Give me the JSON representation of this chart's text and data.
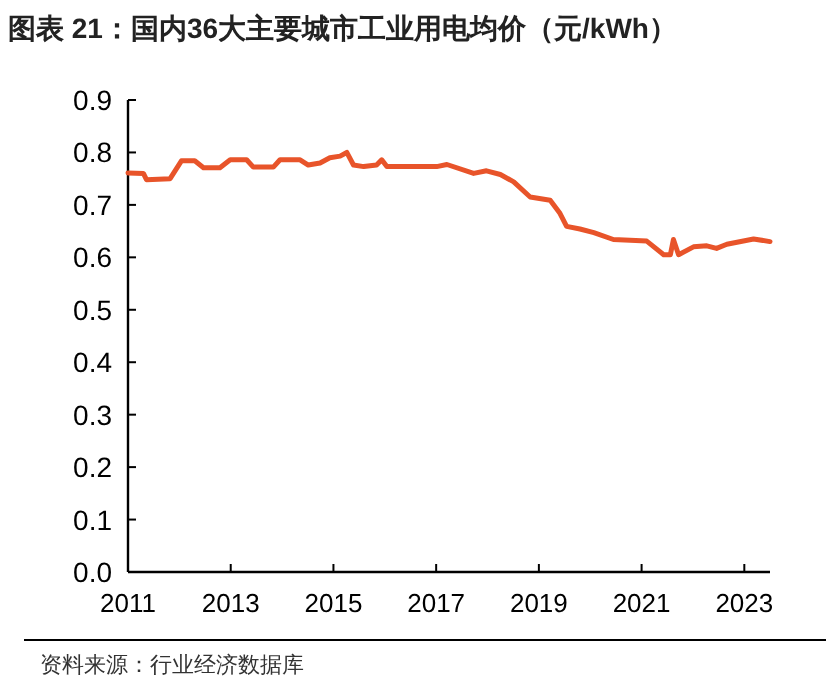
{
  "chart_data": {
    "type": "line",
    "title": "图表 21：国内36大主要城市工业用电均价（元/kWh）",
    "annotations": [
      "资料来源：行业经济数据库"
    ],
    "x": [
      2011.0,
      2011.3,
      2011.36,
      2011.82,
      2012.04,
      2012.3,
      2012.47,
      2012.79,
      2012.99,
      2013.31,
      2013.44,
      2013.83,
      2013.96,
      2014.35,
      2014.51,
      2014.74,
      2014.93,
      2015.13,
      2015.26,
      2015.39,
      2015.59,
      2015.84,
      2015.94,
      2016.04,
      2016.69,
      2017.01,
      2017.21,
      2017.73,
      2017.98,
      2018.25,
      2018.51,
      2018.83,
      2019.22,
      2019.41,
      2019.54,
      2019.8,
      2020.07,
      2020.45,
      2021.1,
      2021.43,
      2021.56,
      2021.62,
      2021.72,
      2022.01,
      2022.27,
      2022.46,
      2022.66,
      2023.18,
      2023.5
    ],
    "series": [
      {
        "color": "#e8542a",
        "values": [
          0.761,
          0.76,
          0.748,
          0.75,
          0.784,
          0.784,
          0.771,
          0.771,
          0.786,
          0.786,
          0.772,
          0.772,
          0.786,
          0.786,
          0.776,
          0.78,
          0.79,
          0.793,
          0.8,
          0.776,
          0.773,
          0.776,
          0.786,
          0.773,
          0.773,
          0.773,
          0.777,
          0.76,
          0.765,
          0.758,
          0.744,
          0.715,
          0.709,
          0.684,
          0.659,
          0.654,
          0.647,
          0.634,
          0.631,
          0.605,
          0.605,
          0.634,
          0.605,
          0.62,
          0.622,
          0.617,
          0.625,
          0.635,
          0.63
        ]
      }
    ],
    "xlim": [
      2011,
      2023.5
    ],
    "xticks": [
      2011,
      2013,
      2015,
      2017,
      2019,
      2021,
      2023
    ],
    "ylim": [
      0,
      0.9
    ],
    "yticks": [
      {
        "value": 0,
        "label": "0.0"
      },
      {
        "value": 0.1,
        "label": "0.1"
      },
      {
        "value": 0.2,
        "label": "0.2"
      },
      {
        "value": 0.3,
        "label": "0.3"
      },
      {
        "value": 0.4,
        "label": "0.4"
      },
      {
        "value": 0.5,
        "label": "0.5"
      },
      {
        "value": 0.6,
        "label": "0.6"
      },
      {
        "value": 0.7,
        "label": "0.7"
      },
      {
        "value": 0.8,
        "label": "0.8"
      },
      {
        "value": 0.9,
        "label": "0.9"
      }
    ],
    "grid": false
  }
}
